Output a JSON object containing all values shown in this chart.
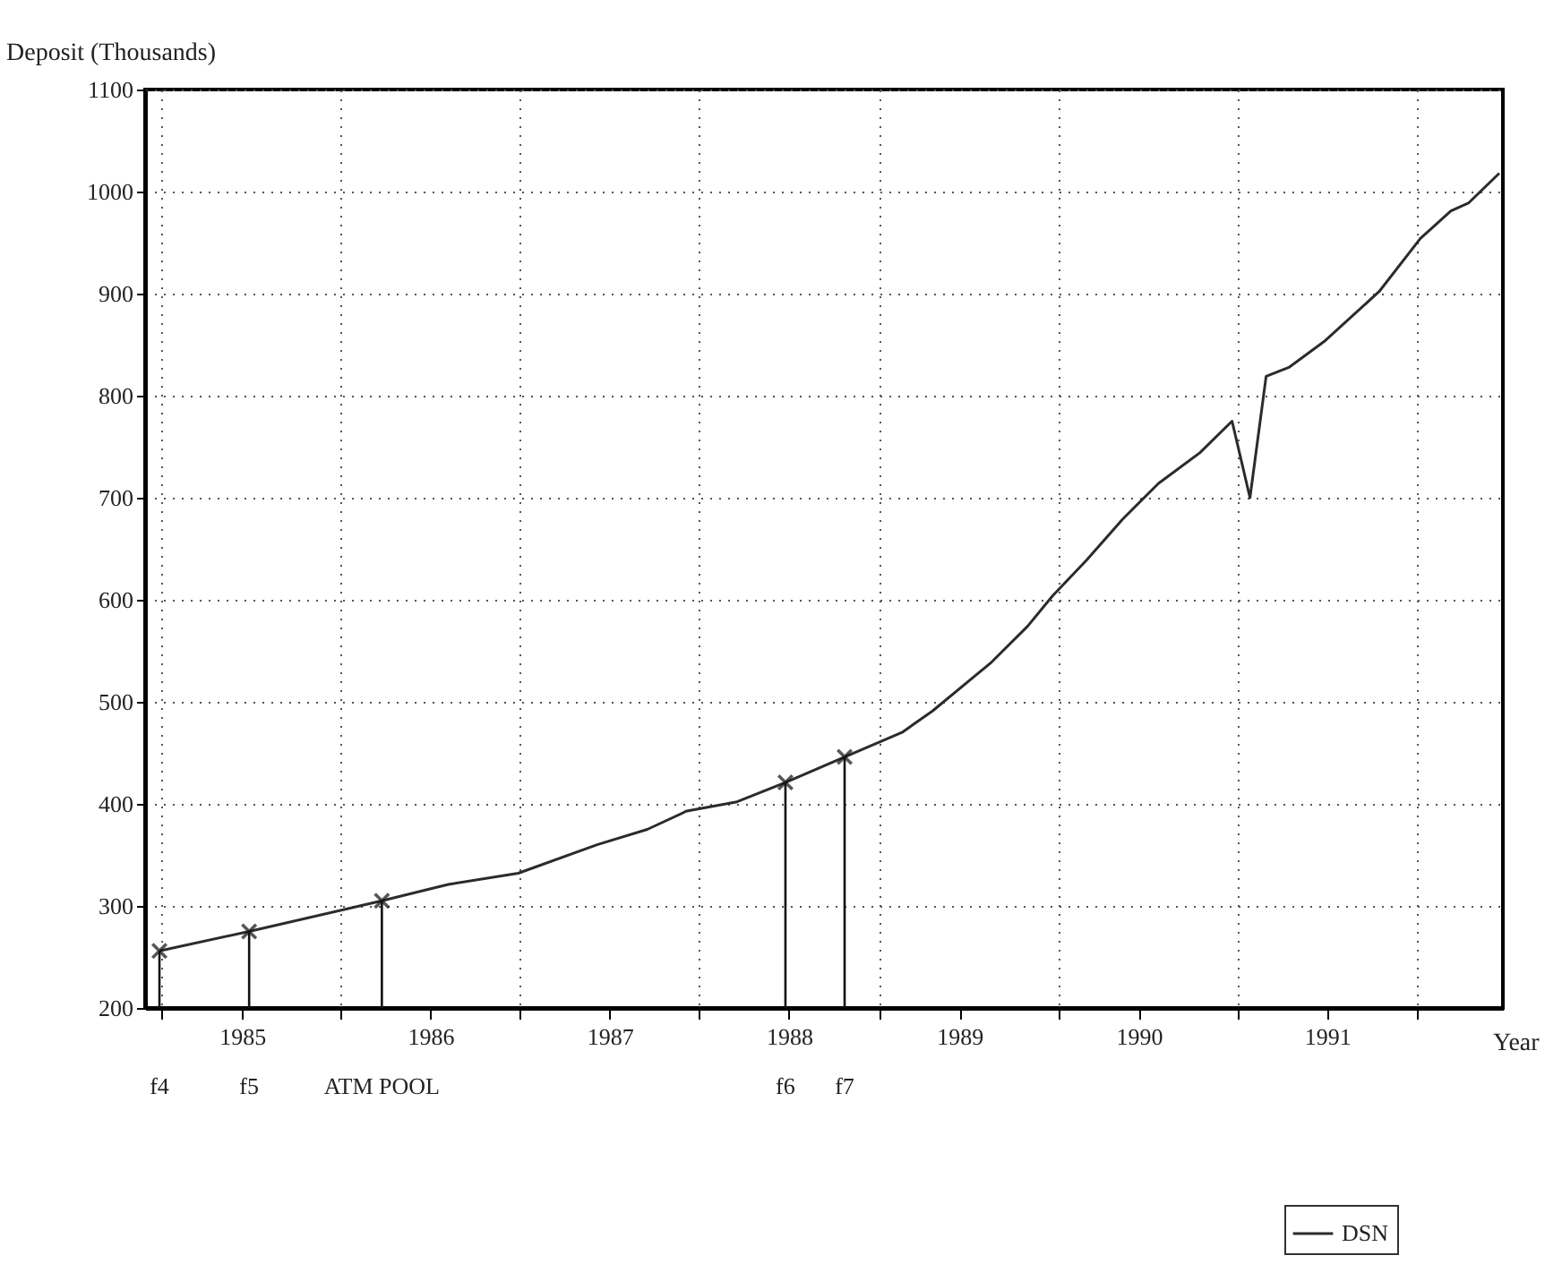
{
  "chart_data": {
    "type": "line",
    "ylabel": "Deposit (Thousands)",
    "xlabel": "Year",
    "x": [
      1984.99,
      1985.49,
      1986.23,
      1986.6,
      1986.99,
      1987.43,
      1987.71,
      1987.93,
      1988.21,
      1988.48,
      1988.81,
      1989.13,
      1989.3,
      1989.63,
      1989.83,
      1989.97,
      1990.16,
      1990.36,
      1990.56,
      1990.79,
      1990.97,
      1991.07,
      1991.16,
      1991.29,
      1991.49,
      1991.79,
      1992.02,
      1992.19,
      1992.29,
      1992.46
    ],
    "series": [
      {
        "name": "DSN",
        "color": "#2b2b2b",
        "values": [
          256,
          275,
          305,
          321,
          332,
          360,
          375,
          393,
          402,
          421,
          446,
          470,
          491,
          539,
          574,
          604,
          639,
          679,
          714,
          744,
          775,
          700,
          819,
          828,
          854,
          902,
          954,
          981,
          989,
          1018
        ]
      },
      {
        "type": "lollipop",
        "color": "#111111",
        "marker": "cross",
        "x": [
          1984.99,
          1985.49,
          1986.23,
          1988.48,
          1988.81
        ],
        "values": [
          256,
          275,
          305,
          421,
          446
        ]
      }
    ],
    "xlim": [
      1984.91,
      1992.48
    ],
    "xticks": [
      {
        "value": 1985,
        "label": null
      },
      {
        "value": 1985.45,
        "label": "1985"
      },
      {
        "value": 1986,
        "label": null
      },
      {
        "value": 1986.5,
        "label": "1986"
      },
      {
        "value": 1987,
        "label": null
      },
      {
        "value": 1987.5,
        "label": "1987"
      },
      {
        "value": 1988,
        "label": null
      },
      {
        "value": 1988.5,
        "label": "1988"
      },
      {
        "value": 1989,
        "label": null
      },
      {
        "value": 1989.45,
        "label": "1989"
      },
      {
        "value": 1990,
        "label": null
      },
      {
        "value": 1990.45,
        "label": "1990"
      },
      {
        "value": 1991,
        "label": null
      },
      {
        "value": 1991.5,
        "label": "1991"
      },
      {
        "value": 1992,
        "label": null
      }
    ],
    "ylim": [
      200,
      1100
    ],
    "yticks": [
      200,
      300,
      400,
      500,
      600,
      700,
      800,
      900,
      1000,
      1100
    ],
    "grid": true,
    "legend": "bottom right",
    "annotations": [
      "f4",
      "f5",
      "ATM POOL",
      "f6",
      "f7"
    ]
  }
}
